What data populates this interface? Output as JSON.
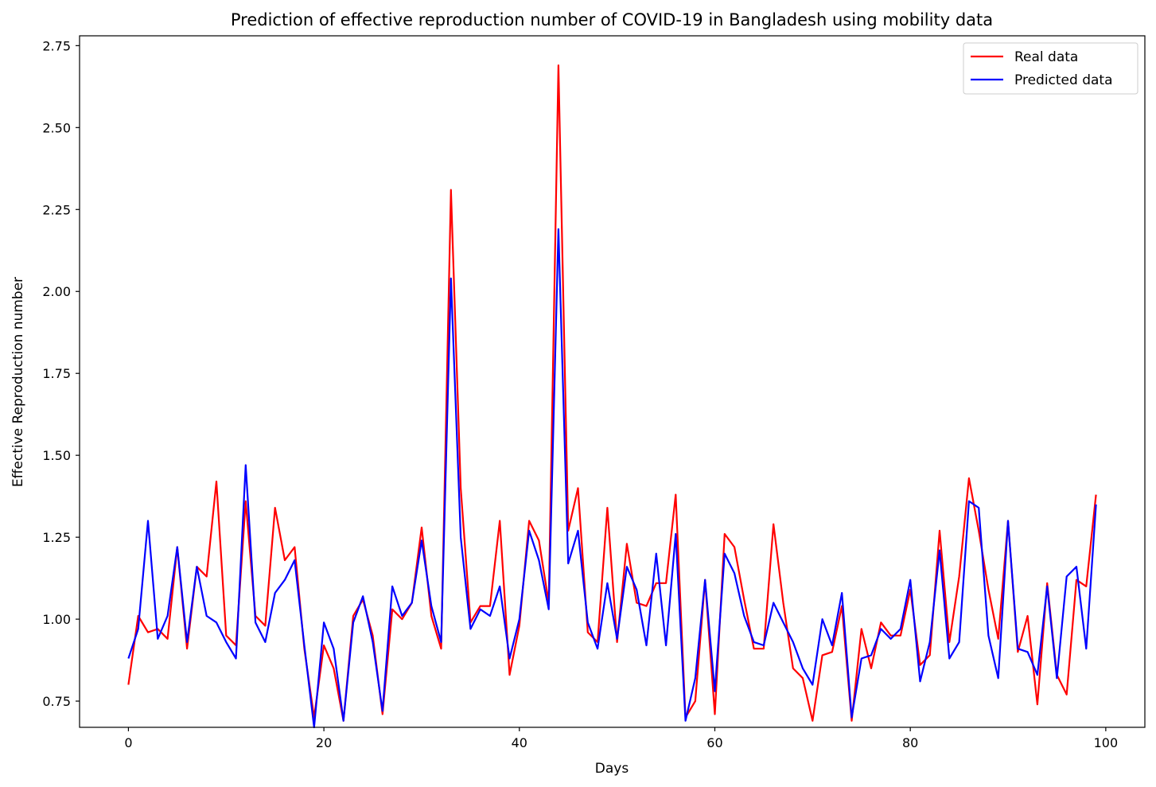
{
  "chart_data": {
    "type": "line",
    "title": "Prediction of effective reproduction number of COVID-19 in Bangladesh using mobility data",
    "xlabel": "Days",
    "ylabel": "Effective Reproduction number",
    "xlim": [
      -5,
      104
    ],
    "ylim": [
      0.67,
      2.78
    ],
    "xticks": [
      0,
      20,
      40,
      60,
      80,
      100
    ],
    "xtick_labels": [
      "0",
      "20",
      "40",
      "60",
      "80",
      "100"
    ],
    "yticks": [
      0.75,
      1.0,
      1.25,
      1.5,
      1.75,
      2.0,
      2.25,
      2.5,
      2.75
    ],
    "ytick_labels": [
      "0.75",
      "1.00",
      "1.25",
      "1.50",
      "1.75",
      "2.00",
      "2.25",
      "2.50",
      "2.75"
    ],
    "grid": false,
    "legend_position": "top-right",
    "x": [
      0,
      1,
      2,
      3,
      4,
      5,
      6,
      7,
      8,
      9,
      10,
      11,
      12,
      13,
      14,
      15,
      16,
      17,
      18,
      19,
      20,
      21,
      22,
      23,
      24,
      25,
      26,
      27,
      28,
      29,
      30,
      31,
      32,
      33,
      34,
      35,
      36,
      37,
      38,
      39,
      40,
      41,
      42,
      43,
      44,
      45,
      46,
      47,
      48,
      49,
      50,
      51,
      52,
      53,
      54,
      55,
      56,
      57,
      58,
      59,
      60,
      61,
      62,
      63,
      64,
      65,
      66,
      67,
      68,
      69,
      70,
      71,
      72,
      73,
      74,
      75,
      76,
      77,
      78,
      79,
      80,
      81,
      82,
      83,
      84,
      85,
      86,
      87,
      88,
      89,
      90,
      91,
      92,
      93,
      94,
      95,
      96,
      97,
      98,
      99
    ],
    "series": [
      {
        "name": "Real data",
        "color": "#ff0000",
        "values": [
          0.8,
          1.01,
          0.96,
          0.97,
          0.94,
          1.22,
          0.91,
          1.16,
          1.13,
          1.42,
          0.95,
          0.92,
          1.36,
          1.01,
          0.98,
          1.34,
          1.18,
          1.22,
          0.91,
          0.7,
          0.92,
          0.85,
          0.69,
          1.01,
          1.06,
          0.95,
          0.71,
          1.03,
          1.0,
          1.05,
          1.28,
          1.01,
          0.91,
          2.31,
          1.4,
          0.99,
          1.04,
          1.04,
          1.3,
          0.83,
          0.98,
          1.3,
          1.24,
          1.05,
          2.69,
          1.27,
          1.4,
          0.96,
          0.93,
          1.34,
          0.93,
          1.23,
          1.05,
          1.04,
          1.11,
          1.11,
          1.38,
          0.7,
          0.75,
          1.12,
          0.71,
          1.26,
          1.22,
          1.06,
          0.91,
          0.91,
          1.29,
          1.05,
          0.85,
          0.82,
          0.69,
          0.89,
          0.9,
          1.04,
          0.69,
          0.97,
          0.85,
          0.99,
          0.95,
          0.95,
          1.09,
          0.86,
          0.89,
          1.27,
          0.93,
          1.13,
          1.43,
          1.27,
          1.09,
          0.94,
          1.3,
          0.9,
          1.01,
          0.74,
          1.11,
          0.83,
          0.77,
          1.12,
          1.1,
          1.38
        ]
      },
      {
        "name": "Predicted data",
        "color": "#0000ff",
        "values": [
          0.88,
          0.97,
          1.3,
          0.94,
          1.01,
          1.22,
          0.93,
          1.16,
          1.01,
          0.99,
          0.93,
          0.88,
          1.47,
          0.99,
          0.93,
          1.08,
          1.12,
          1.18,
          0.92,
          0.67,
          0.99,
          0.91,
          0.69,
          0.99,
          1.07,
          0.93,
          0.72,
          1.1,
          1.01,
          1.05,
          1.24,
          1.04,
          0.93,
          2.04,
          1.25,
          0.97,
          1.03,
          1.01,
          1.1,
          0.88,
          1.0,
          1.27,
          1.18,
          1.03,
          2.19,
          1.17,
          1.27,
          0.99,
          0.91,
          1.11,
          0.94,
          1.16,
          1.09,
          0.92,
          1.2,
          0.92,
          1.26,
          0.69,
          0.82,
          1.12,
          0.78,
          1.2,
          1.14,
          1.01,
          0.93,
          0.92,
          1.05,
          0.99,
          0.93,
          0.85,
          0.8,
          1.0,
          0.92,
          1.08,
          0.7,
          0.88,
          0.89,
          0.97,
          0.94,
          0.97,
          1.12,
          0.81,
          0.93,
          1.21,
          0.88,
          0.93,
          1.36,
          1.34,
          0.95,
          0.82,
          1.3,
          0.91,
          0.9,
          0.83,
          1.1,
          0.82,
          1.13,
          1.16,
          0.91,
          1.35
        ]
      }
    ]
  }
}
